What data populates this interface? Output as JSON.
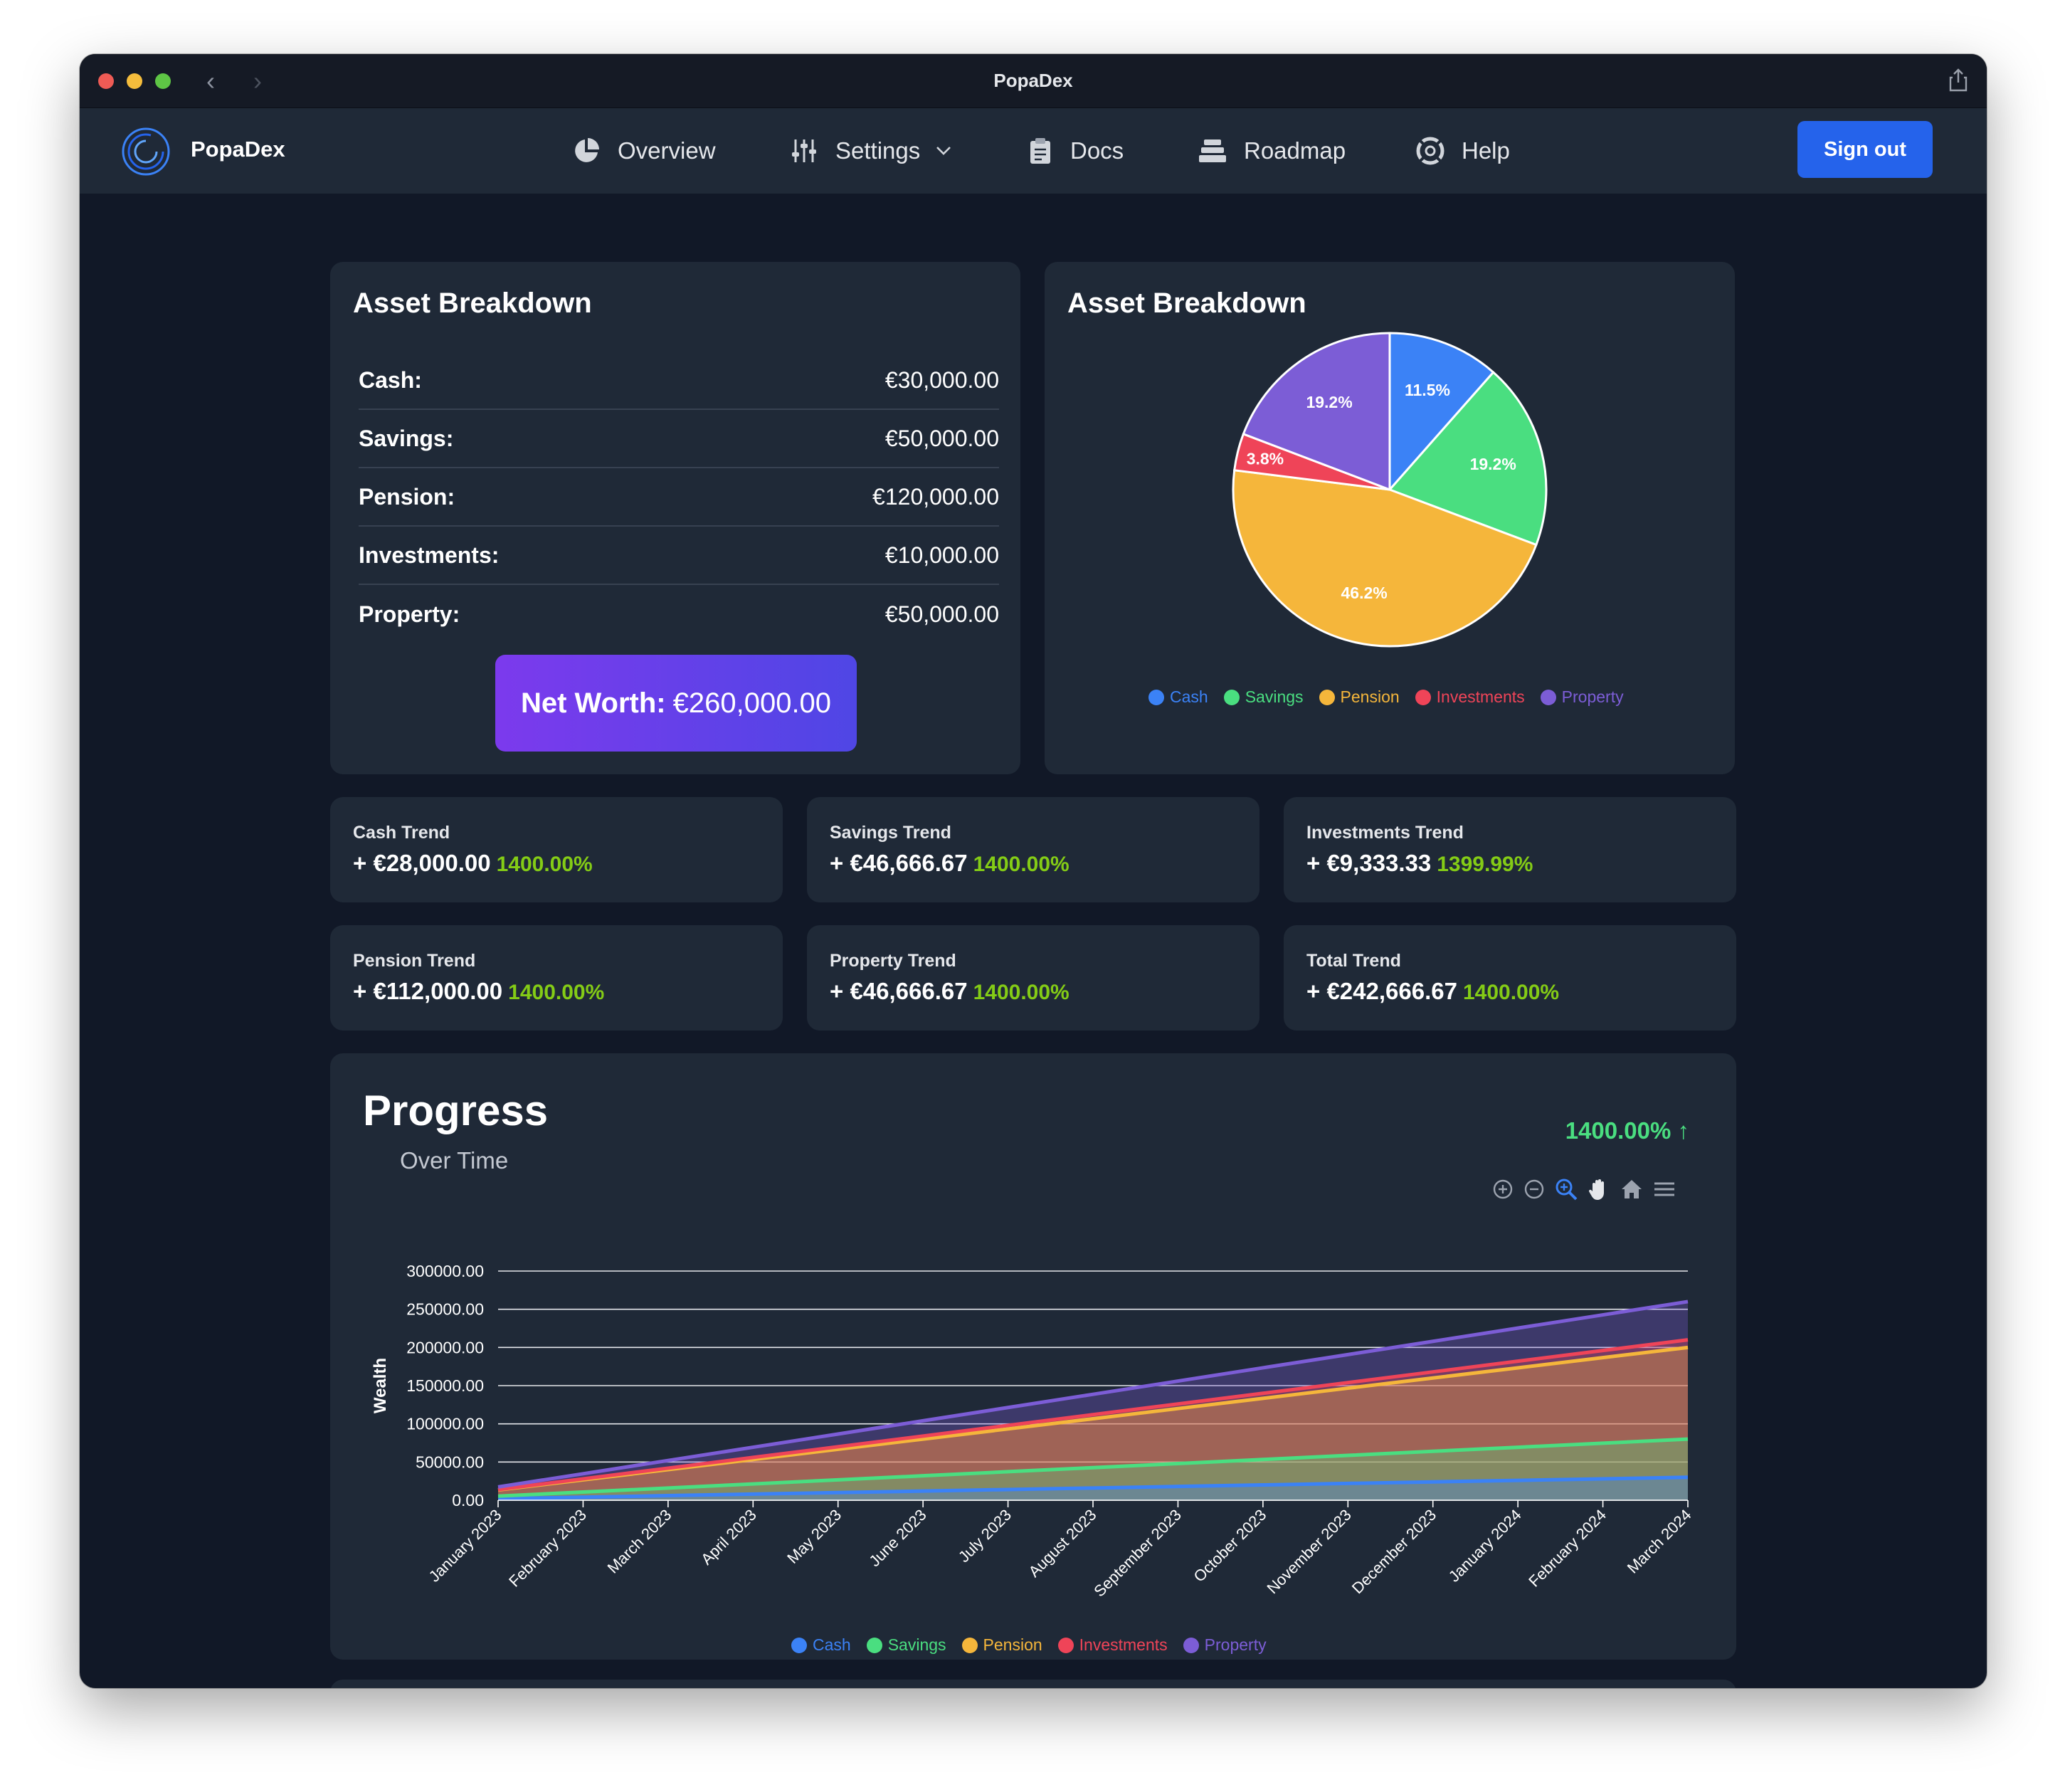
{
  "window": {
    "title": "PopaDex"
  },
  "nav": {
    "brand": "PopaDex",
    "items": [
      {
        "label": "Overview",
        "icon": "pie-chart-icon"
      },
      {
        "label": "Settings",
        "icon": "sliders-icon"
      },
      {
        "label": "Docs",
        "icon": "clipboard-icon"
      },
      {
        "label": "Roadmap",
        "icon": "stack-icon"
      },
      {
        "label": "Help",
        "icon": "lifebuoy-icon"
      }
    ],
    "signout_label": "Sign out"
  },
  "asset_card": {
    "title": "Asset Breakdown",
    "rows": [
      {
        "label": "Cash:",
        "value": "€30,000.00"
      },
      {
        "label": "Savings:",
        "value": "€50,000.00"
      },
      {
        "label": "Pension:",
        "value": "€120,000.00"
      },
      {
        "label": "Investments:",
        "value": "€10,000.00"
      },
      {
        "label": "Property:",
        "value": "€50,000.00"
      }
    ],
    "networth_label": "Net Worth:",
    "networth_value": "€260,000.00"
  },
  "pie_card": {
    "title": "Asset Breakdown"
  },
  "colors": {
    "cash": "#3b82f6",
    "savings": "#4ade80",
    "pension": "#f5b63b",
    "investments": "#ef4458",
    "property": "#7c5dd6",
    "accent": "#2563eb",
    "positive": "#84cc16"
  },
  "trends": [
    {
      "title": "Cash Trend",
      "value": "+ €28,000.00",
      "pct": "1400.00%"
    },
    {
      "title": "Savings Trend",
      "value": "+ €46,666.67",
      "pct": "1400.00%"
    },
    {
      "title": "Investments Trend",
      "value": "+ €9,333.33",
      "pct": "1399.99%"
    },
    {
      "title": "Pension Trend",
      "value": "+ €112,000.00",
      "pct": "1400.00%"
    },
    {
      "title": "Property Trend",
      "value": "+ €46,666.67",
      "pct": "1400.00%"
    },
    {
      "title": "Total Trend",
      "value": "+ €242,666.67",
      "pct": "1400.00%"
    }
  ],
  "progress": {
    "title": "Progress",
    "subtitle": "Over Time",
    "pct": "1400.00% ↑"
  },
  "chart_data": [
    {
      "type": "pie",
      "categories": [
        "Cash",
        "Savings",
        "Pension",
        "Investments",
        "Property"
      ],
      "values": [
        11.5,
        19.2,
        46.2,
        3.8,
        19.2
      ],
      "labels": [
        "11.5%",
        "19.2%",
        "46.2%",
        "3.8%",
        "19.2%"
      ],
      "legend": "bottom"
    },
    {
      "type": "area",
      "stacked": true,
      "ylabel": "Wealth",
      "ylim": [
        0,
        300000
      ],
      "yticks": [
        "0.00",
        "50000.00",
        "100000.00",
        "150000.00",
        "200000.00",
        "250000.00",
        "300000.00"
      ],
      "categories": [
        "January 2023",
        "February 2023",
        "March 2023",
        "April 2023",
        "May 2023",
        "June 2023",
        "July 2023",
        "August 2023",
        "September 2023",
        "October 2023",
        "November 2023",
        "December 2023",
        "January 2024",
        "February 2024",
        "March 2024"
      ],
      "series": [
        {
          "name": "Cash",
          "values": [
            2000,
            4000,
            6000,
            8000,
            10000,
            12000,
            14000,
            16000,
            18000,
            20000,
            22000,
            24000,
            26000,
            28000,
            30000
          ]
        },
        {
          "name": "Savings",
          "values": [
            3333,
            6667,
            10000,
            13333,
            16667,
            20000,
            23333,
            26667,
            30000,
            33333,
            36667,
            40000,
            43333,
            46667,
            50000
          ]
        },
        {
          "name": "Pension",
          "values": [
            8000,
            16000,
            24000,
            32000,
            40000,
            48000,
            56000,
            64000,
            72000,
            80000,
            88000,
            96000,
            104000,
            112000,
            120000
          ]
        },
        {
          "name": "Investments",
          "values": [
            667,
            1333,
            2000,
            2667,
            3333,
            4000,
            4667,
            5333,
            6000,
            6667,
            7333,
            8000,
            8667,
            9333,
            10000
          ]
        },
        {
          "name": "Property",
          "values": [
            3333,
            6667,
            10000,
            13333,
            16667,
            20000,
            23333,
            26667,
            30000,
            33333,
            36667,
            40000,
            43333,
            46667,
            50000
          ]
        }
      ],
      "legend": "bottom",
      "grid": true
    }
  ]
}
